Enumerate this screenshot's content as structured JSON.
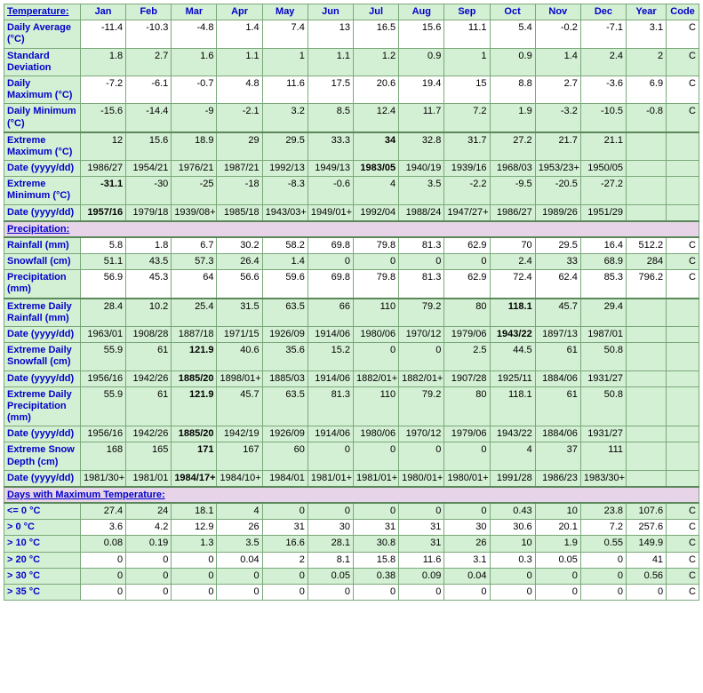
{
  "head": {
    "label": "Temperature:",
    "months": [
      "Jan",
      "Feb",
      "Mar",
      "Apr",
      "May",
      "Jun",
      "Jul",
      "Aug",
      "Sep",
      "Oct",
      "Nov",
      "Dec"
    ],
    "year": "Year",
    "code": "Code"
  },
  "rows": [
    {
      "id": "davg",
      "label": "Daily Average (°C)",
      "bg": "w",
      "bold": [],
      "v": [
        "-11.4",
        "-10.3",
        "-4.8",
        "1.4",
        "7.4",
        "13",
        "16.5",
        "15.6",
        "11.1",
        "5.4",
        "-0.2",
        "-7.1",
        "3.1",
        "C"
      ]
    },
    {
      "id": "sdev",
      "label": "Standard Deviation",
      "bg": "g",
      "bold": [],
      "v": [
        "1.8",
        "2.7",
        "1.6",
        "1.1",
        "1",
        "1.1",
        "1.2",
        "0.9",
        "1",
        "0.9",
        "1.4",
        "2.4",
        "2",
        "C"
      ]
    },
    {
      "id": "dmax",
      "label": "Daily Maximum (°C)",
      "bg": "w",
      "bold": [],
      "v": [
        "-7.2",
        "-6.1",
        "-0.7",
        "4.8",
        "11.6",
        "17.5",
        "20.6",
        "19.4",
        "15",
        "8.8",
        "2.7",
        "-3.6",
        "6.9",
        "C"
      ]
    },
    {
      "id": "dmin",
      "label": "Daily Minimum (°C)",
      "bg": "g",
      "bold": [],
      "v": [
        "-15.6",
        "-14.4",
        "-9",
        "-2.1",
        "3.2",
        "8.5",
        "12.4",
        "11.7",
        "7.2",
        "1.9",
        "-3.2",
        "-10.5",
        "-0.8",
        "C"
      ]
    },
    {
      "id": "emax",
      "label": "Extreme Maximum (°C)",
      "bg": "g",
      "thick": true,
      "bold": [
        6
      ],
      "v": [
        "12",
        "15.6",
        "18.9",
        "29",
        "29.5",
        "33.3",
        "34",
        "32.8",
        "31.7",
        "27.2",
        "21.7",
        "21.1",
        "",
        ""
      ]
    },
    {
      "id": "emaxd",
      "label": "Date (yyyy/dd)",
      "bg": "g",
      "bold": [
        6
      ],
      "v": [
        "1986/27",
        "1954/21",
        "1976/21",
        "1987/21",
        "1992/13",
        "1949/13",
        "1983/05",
        "1940/19",
        "1939/16",
        "1968/03",
        "1953/23+",
        "1950/05",
        "",
        ""
      ]
    },
    {
      "id": "emin",
      "label": "Extreme Minimum (°C)",
      "bg": "g",
      "bold": [
        0
      ],
      "v": [
        "-31.1",
        "-30",
        "-25",
        "-18",
        "-8.3",
        "-0.6",
        "4",
        "3.5",
        "-2.2",
        "-9.5",
        "-20.5",
        "-27.2",
        "",
        ""
      ]
    },
    {
      "id": "emind",
      "label": "Date (yyyy/dd)",
      "bg": "g",
      "bold": [
        0
      ],
      "v": [
        "1957/16",
        "1979/18",
        "1939/08+",
        "1985/18",
        "1943/03+",
        "1949/01+",
        "1992/04",
        "1988/24",
        "1947/27+",
        "1986/27",
        "1989/26",
        "1951/29",
        "",
        ""
      ]
    },
    {
      "section": "Precipitation:"
    },
    {
      "id": "rain",
      "label": "Rainfall (mm)",
      "bg": "w",
      "bold": [],
      "v": [
        "5.8",
        "1.8",
        "6.7",
        "30.2",
        "58.2",
        "69.8",
        "79.8",
        "81.3",
        "62.9",
        "70",
        "29.5",
        "16.4",
        "512.2",
        "C"
      ]
    },
    {
      "id": "snow",
      "label": "Snowfall (cm)",
      "bg": "g",
      "bold": [],
      "v": [
        "51.1",
        "43.5",
        "57.3",
        "26.4",
        "1.4",
        "0",
        "0",
        "0",
        "0",
        "2.4",
        "33",
        "68.9",
        "284",
        "C"
      ]
    },
    {
      "id": "precip",
      "label": "Precipitation (mm)",
      "bg": "w",
      "bold": [],
      "v": [
        "56.9",
        "45.3",
        "64",
        "56.6",
        "59.6",
        "69.8",
        "79.8",
        "81.3",
        "62.9",
        "72.4",
        "62.4",
        "85.3",
        "796.2",
        "C"
      ]
    },
    {
      "id": "edr",
      "label": "Extreme Daily Rainfall (mm)",
      "bg": "g",
      "thick": true,
      "bold": [
        9
      ],
      "v": [
        "28.4",
        "10.2",
        "25.4",
        "31.5",
        "63.5",
        "66",
        "110",
        "79.2",
        "80",
        "118.1",
        "45.7",
        "29.4",
        "",
        ""
      ]
    },
    {
      "id": "edrd",
      "label": "Date (yyyy/dd)",
      "bg": "g",
      "bold": [
        9
      ],
      "v": [
        "1963/01",
        "1908/28",
        "1887/18",
        "1971/15",
        "1926/09",
        "1914/06",
        "1980/06",
        "1970/12",
        "1979/06",
        "1943/22",
        "1897/13",
        "1987/01",
        "",
        ""
      ]
    },
    {
      "id": "eds",
      "label": "Extreme Daily Snowfall (cm)",
      "bg": "g",
      "bold": [
        2
      ],
      "v": [
        "55.9",
        "61",
        "121.9",
        "40.6",
        "35.6",
        "15.2",
        "0",
        "0",
        "2.5",
        "44.5",
        "61",
        "50.8",
        "",
        ""
      ]
    },
    {
      "id": "edsd",
      "label": "Date (yyyy/dd)",
      "bg": "g",
      "bold": [
        2
      ],
      "v": [
        "1956/16",
        "1942/26",
        "1885/20",
        "1898/01+",
        "1885/03",
        "1914/06",
        "1882/01+",
        "1882/01+",
        "1907/28",
        "1925/11",
        "1884/06",
        "1931/27",
        "",
        ""
      ]
    },
    {
      "id": "edp",
      "label": "Extreme Daily Precipitation (mm)",
      "bg": "g",
      "bold": [
        2
      ],
      "v": [
        "55.9",
        "61",
        "121.9",
        "45.7",
        "63.5",
        "81.3",
        "110",
        "79.2",
        "80",
        "118.1",
        "61",
        "50.8",
        "",
        ""
      ]
    },
    {
      "id": "edpd",
      "label": "Date (yyyy/dd)",
      "bg": "g",
      "bold": [
        2
      ],
      "v": [
        "1956/16",
        "1942/26",
        "1885/20",
        "1942/19",
        "1926/09",
        "1914/06",
        "1980/06",
        "1970/12",
        "1979/06",
        "1943/22",
        "1884/06",
        "1931/27",
        "",
        ""
      ]
    },
    {
      "id": "esd",
      "label": "Extreme Snow Depth (cm)",
      "bg": "g",
      "bold": [
        2
      ],
      "v": [
        "168",
        "165",
        "171",
        "167",
        "60",
        "0",
        "0",
        "0",
        "0",
        "4",
        "37",
        "111",
        "",
        ""
      ]
    },
    {
      "id": "esdd",
      "label": "Date (yyyy/dd)",
      "bg": "g",
      "bold": [
        2
      ],
      "v": [
        "1981/30+",
        "1981/01",
        "1984/17+",
        "1984/10+",
        "1984/01",
        "1981/01+",
        "1981/01+",
        "1980/01+",
        "1980/01+",
        "1991/28",
        "1986/23",
        "1983/30+",
        "",
        ""
      ]
    },
    {
      "section": "Days with Maximum Temperature:"
    },
    {
      "id": "le0",
      "label": "<= 0 °C",
      "bg": "g",
      "bold": [],
      "v": [
        "27.4",
        "24",
        "18.1",
        "4",
        "0",
        "0",
        "0",
        "0",
        "0",
        "0.43",
        "10",
        "23.8",
        "107.6",
        "C"
      ]
    },
    {
      "id": "gt0",
      "label": "> 0 °C",
      "bg": "w",
      "bold": [],
      "v": [
        "3.6",
        "4.2",
        "12.9",
        "26",
        "31",
        "30",
        "31",
        "31",
        "30",
        "30.6",
        "20.1",
        "7.2",
        "257.6",
        "C"
      ]
    },
    {
      "id": "gt10",
      "label": "> 10 °C",
      "bg": "g",
      "bold": [],
      "v": [
        "0.08",
        "0.19",
        "1.3",
        "3.5",
        "16.6",
        "28.1",
        "30.8",
        "31",
        "26",
        "10",
        "1.9",
        "0.55",
        "149.9",
        "C"
      ]
    },
    {
      "id": "gt20",
      "label": "> 20 °C",
      "bg": "w",
      "bold": [],
      "v": [
        "0",
        "0",
        "0",
        "0.04",
        "2",
        "8.1",
        "15.8",
        "11.6",
        "3.1",
        "0.3",
        "0.05",
        "0",
        "41",
        "C"
      ]
    },
    {
      "id": "gt30",
      "label": "> 30 °C",
      "bg": "g",
      "bold": [],
      "v": [
        "0",
        "0",
        "0",
        "0",
        "0",
        "0.05",
        "0.38",
        "0.09",
        "0.04",
        "0",
        "0",
        "0",
        "0.56",
        "C"
      ]
    },
    {
      "id": "gt35",
      "label": "> 35 °C",
      "bg": "w",
      "bold": [],
      "v": [
        "0",
        "0",
        "0",
        "0",
        "0",
        "0",
        "0",
        "0",
        "0",
        "0",
        "0",
        "0",
        "0",
        "C"
      ]
    }
  ]
}
